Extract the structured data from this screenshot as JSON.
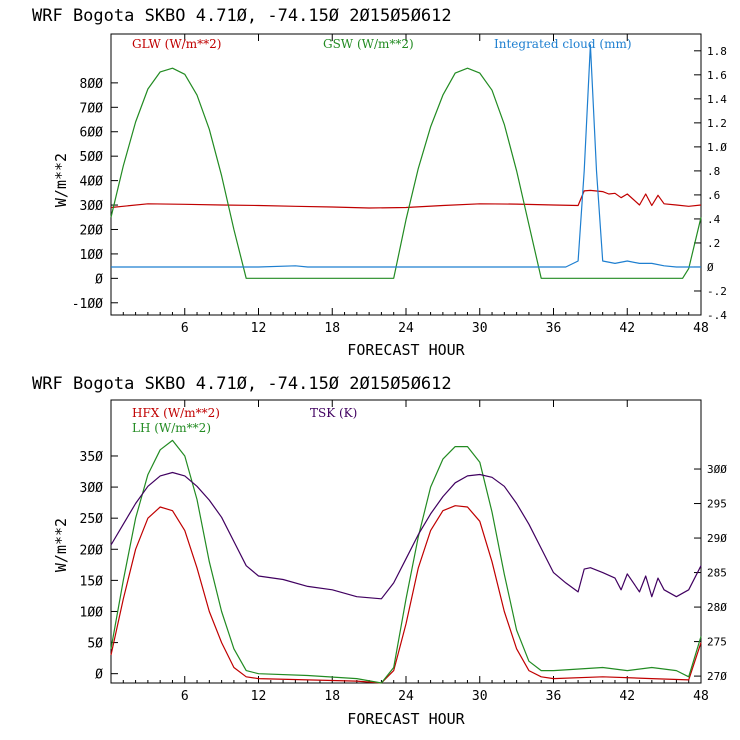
{
  "chart_data": [
    {
      "type": "line",
      "title": "WRF   Bogota SKBO     4.71Ø, -74.15Ø  2Ø15Ø5Ø612",
      "xlabel": "FORECAST HOUR",
      "ylabel": "W/m**2",
      "x_ticks": [
        "6",
        "12",
        "18",
        "24",
        "30",
        "36",
        "42",
        "48"
      ],
      "x_tick_values": [
        6,
        12,
        18,
        24,
        30,
        36,
        42,
        48
      ],
      "xlim": [
        0,
        48
      ],
      "ylim": [
        -150,
        1000
      ],
      "y_ticks": [
        "-1ØØ",
        "Ø",
        "1ØØ",
        "2ØØ",
        "3ØØ",
        "4ØØ",
        "5ØØ",
        "6ØØ",
        "7ØØ",
        "8ØØ"
      ],
      "y_tick_values": [
        -100,
        0,
        100,
        200,
        300,
        400,
        500,
        600,
        700,
        800
      ],
      "y2lim": [
        -0.4,
        1.94
      ],
      "y2_ticks": [
        "-.4",
        "-.2",
        "Ø",
        ".2",
        ".4",
        ".6",
        ".8",
        "1.Ø",
        "1.2",
        "1.4",
        "1.6",
        "1.8"
      ],
      "y2_tick_values": [
        -0.4,
        -0.2,
        0,
        0.2,
        0.4,
        0.6,
        0.8,
        1.0,
        1.2,
        1.4,
        1.6,
        1.8
      ],
      "series": [
        {
          "name": "GLW (W/m**2)",
          "color": "#c00000",
          "axis": "left",
          "x": [
            0,
            3,
            6,
            9,
            12,
            15,
            18,
            21,
            24,
            27,
            30,
            33,
            36,
            38,
            38.5,
            39,
            40,
            40.5,
            41,
            41.5,
            42,
            43,
            43.5,
            44,
            44.5,
            45,
            46,
            47,
            48
          ],
          "y": [
            290,
            305,
            303,
            300,
            298,
            295,
            292,
            288,
            290,
            298,
            305,
            304,
            300,
            298,
            358,
            360,
            355,
            345,
            348,
            330,
            345,
            300,
            345,
            298,
            340,
            305,
            300,
            295,
            300
          ]
        },
        {
          "name": "GSW (W/m**2)",
          "color": "#228b22",
          "axis": "left",
          "x": [
            0,
            1,
            2,
            3,
            4,
            5,
            6,
            7,
            8,
            9,
            10,
            11,
            12,
            22,
            23,
            24,
            25,
            26,
            27,
            28,
            29,
            30,
            31,
            32,
            33,
            34,
            35,
            36,
            46.5,
            47,
            48
          ],
          "y": [
            250,
            460,
            640,
            775,
            845,
            860,
            835,
            750,
            610,
            420,
            200,
            0,
            0,
            0,
            0,
            240,
            450,
            620,
            750,
            840,
            860,
            840,
            770,
            630,
            440,
            220,
            0,
            0,
            0,
            40,
            250
          ]
        },
        {
          "name": "Integrated cloud (mm)",
          "color": "#1e7fd0",
          "axis": "right",
          "x": [
            0,
            12,
            15,
            16,
            24,
            36,
            37,
            38,
            38.5,
            39,
            39.5,
            40,
            41,
            42,
            43,
            44,
            45,
            46,
            47,
            48
          ],
          "y": [
            0,
            0,
            0.01,
            0,
            0,
            0,
            0,
            0.05,
            0.8,
            1.85,
            0.8,
            0.05,
            0.03,
            0.05,
            0.03,
            0.03,
            0.01,
            0,
            0,
            0
          ]
        }
      ]
    },
    {
      "type": "line",
      "title": "WRF   Bogota SKBO     4.71Ø, -74.15Ø  2Ø15Ø5Ø612",
      "xlabel": "FORECAST HOUR",
      "ylabel": "W/m**2",
      "x_ticks": [
        "6",
        "12",
        "18",
        "24",
        "30",
        "36",
        "42",
        "48"
      ],
      "x_tick_values": [
        6,
        12,
        18,
        24,
        30,
        36,
        42,
        48
      ],
      "xlim": [
        0,
        48
      ],
      "ylim": [
        -15,
        440
      ],
      "y_ticks": [
        "Ø",
        "5Ø",
        "1ØØ",
        "15Ø",
        "2ØØ",
        "25Ø",
        "3ØØ",
        "35Ø"
      ],
      "y_tick_values": [
        0,
        50,
        100,
        150,
        200,
        250,
        300,
        350
      ],
      "y2lim": [
        269,
        310
      ],
      "y2_ticks": [
        "27Ø",
        "275",
        "28Ø",
        "285",
        "29Ø",
        "295",
        "3ØØ"
      ],
      "y2_tick_values": [
        270,
        275,
        280,
        285,
        290,
        295,
        300
      ],
      "series": [
        {
          "name": "HFX (W/m**2)",
          "color": "#c00000",
          "axis": "left",
          "x": [
            0,
            1,
            2,
            3,
            4,
            5,
            6,
            7,
            8,
            9,
            10,
            11,
            12,
            16,
            20,
            22,
            23,
            24,
            25,
            26,
            27,
            28,
            29,
            30,
            31,
            32,
            33,
            34,
            35,
            36,
            40,
            44,
            47,
            48
          ],
          "y": [
            30,
            120,
            200,
            250,
            268,
            262,
            230,
            170,
            100,
            50,
            10,
            -5,
            -8,
            -10,
            -12,
            -15,
            5,
            80,
            170,
            230,
            262,
            270,
            268,
            245,
            180,
            100,
            40,
            5,
            -5,
            -8,
            -5,
            -8,
            -10,
            50
          ]
        },
        {
          "name": "LH  (W/m**2)",
          "color": "#228b22",
          "axis": "left",
          "x": [
            0,
            1,
            2,
            3,
            4,
            5,
            6,
            7,
            8,
            9,
            10,
            11,
            12,
            16,
            20,
            22,
            23,
            24,
            25,
            26,
            27,
            28,
            29,
            30,
            31,
            32,
            33,
            34,
            35,
            36,
            40,
            42,
            44,
            46,
            47,
            48
          ],
          "y": [
            40,
            150,
            250,
            320,
            360,
            375,
            350,
            280,
            180,
            100,
            40,
            5,
            0,
            -3,
            -8,
            -15,
            10,
            120,
            220,
            300,
            345,
            365,
            365,
            340,
            260,
            160,
            70,
            20,
            5,
            5,
            10,
            5,
            10,
            5,
            -5,
            60
          ]
        },
        {
          "name": "TSK (K)",
          "color": "#400060",
          "axis": "right",
          "x": [
            0,
            1,
            2,
            3,
            4,
            5,
            6,
            7,
            8,
            9,
            10,
            11,
            12,
            14,
            16,
            18,
            20,
            22,
            23,
            24,
            25,
            26,
            27,
            28,
            29,
            30,
            31,
            32,
            33,
            34,
            35,
            36,
            37,
            38,
            38.5,
            39,
            40,
            41,
            41.5,
            42,
            43,
            43.5,
            44,
            44.5,
            45,
            46,
            47,
            48
          ],
          "y": [
            289,
            292,
            295,
            297.5,
            299,
            299.5,
            299,
            297.5,
            295.5,
            293,
            289.5,
            286,
            284.5,
            284,
            283,
            282.5,
            281.5,
            281.2,
            283.5,
            287,
            290.5,
            293.5,
            296,
            298,
            299,
            299.2,
            298.8,
            297.5,
            295,
            292,
            288.5,
            285,
            283.5,
            282.2,
            285.5,
            285.7,
            285,
            284.2,
            282.5,
            284.8,
            282.2,
            284.5,
            281.5,
            284.2,
            282.5,
            281.5,
            282.5,
            286
          ]
        }
      ]
    }
  ]
}
